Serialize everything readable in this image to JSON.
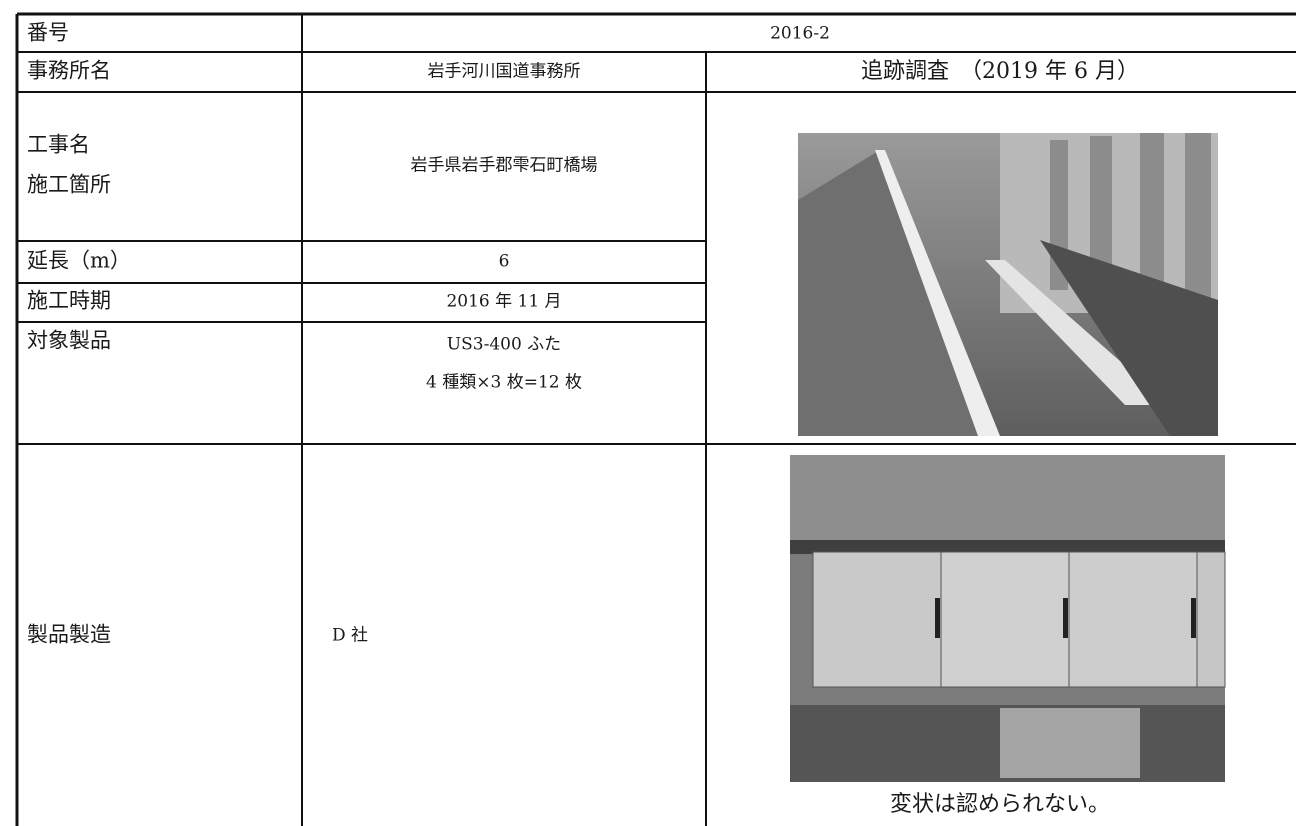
{
  "rows": [
    {
      "label": "番号",
      "value": "2016-2"
    },
    {
      "label": "事務所名",
      "value": "岩手河川国道事務所"
    },
    {
      "label": [
        "工事名",
        "施工箇所"
      ],
      "value": "岩手県岩手郡雫石町橋場"
    },
    {
      "label": "延長（m）",
      "value": "6"
    },
    {
      "label": "施工時期",
      "value": "2016 年 11 月"
    },
    {
      "label": "対象製品",
      "value": [
        "US3-400 ふた",
        "4 種類×3 枚=12 枚"
      ]
    },
    {
      "label": "製品製造",
      "value": "D 社"
    }
  ],
  "survey_heading": "追跡調査　（2019 年 6 月）",
  "photo_caption": "変状は認められない。"
}
